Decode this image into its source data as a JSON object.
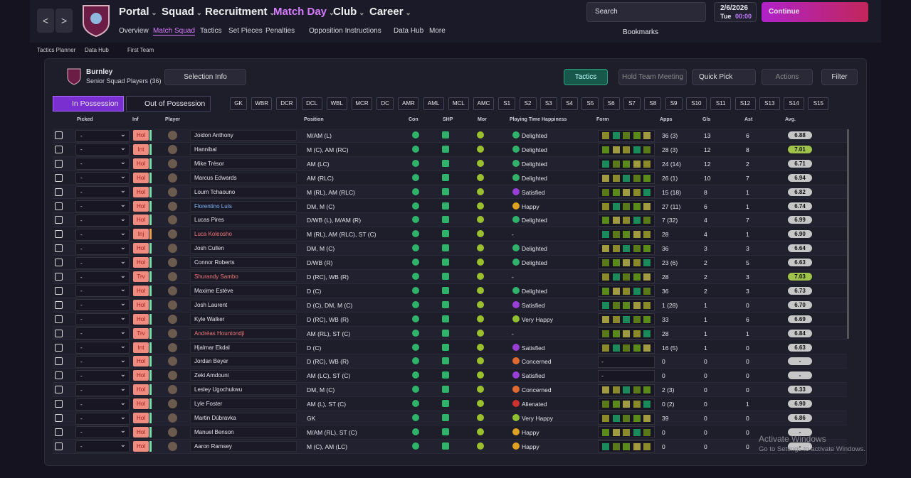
{
  "nav": {
    "back": "<",
    "forward": ">",
    "items": [
      "Portal",
      "Squad",
      "Recruitment",
      "Match Day",
      "Club",
      "Career"
    ],
    "sub": [
      "Overview",
      "Match Squad",
      "Tactics",
      "Set Pieces",
      "Penalties",
      "Opposition Instructions",
      "Data Hub",
      "More"
    ],
    "search": "Search",
    "date": "2/6/2026",
    "day": "Tue",
    "time": "00:00",
    "continue": "Continue",
    "bookmarks": "Bookmarks"
  },
  "breadcrumb": [
    "Tactics Planner",
    "Data Hub",
    "First Team"
  ],
  "panel": {
    "club": "Burnley",
    "squad": "Senior Squad Players (36)",
    "selection": "Selection Info",
    "tactics": "Tactics",
    "meeting": "Hold Team Meeting",
    "quick": "Quick Pick",
    "actions": "Actions",
    "filter": "Filter"
  },
  "tabs": [
    "In Possession",
    "Out of Possession"
  ],
  "positions": [
    "GK",
    "WBR",
    "DCR",
    "DCL",
    "WBL",
    "MCR",
    "DC",
    "AMR",
    "AML",
    "MCL",
    "AMC",
    "S1",
    "S2",
    "S3",
    "S4",
    "S5",
    "S6",
    "S7",
    "S8",
    "S9",
    "S10",
    "S11",
    "S12",
    "S13",
    "S14",
    "S15"
  ],
  "table": {
    "columns": [
      "Picked",
      "Inf",
      "Player",
      "Position",
      "Con",
      "SHP",
      "Mor",
      "Playing Time Happiness",
      "Form",
      "Apps",
      "Gls",
      "Ast",
      "Avg."
    ],
    "rows": [
      {
        "picked": "-",
        "inf": "Hol",
        "player": "Joidon Anthony",
        "position": "M/AM (L)",
        "pth": "Delighted",
        "apps": "36 (3)",
        "gls": "13",
        "ast": "6",
        "avg": "6.88"
      },
      {
        "picked": "-",
        "inf": "Int",
        "player": "Hannibal",
        "position": "M (C), AM (RC)",
        "pth": "Delighted",
        "apps": "28 (3)",
        "gls": "12",
        "ast": "8",
        "avg": "7.01"
      },
      {
        "picked": "-",
        "inf": "Hol",
        "player": "Mike Trésor",
        "position": "AM (LC)",
        "pth": "Delighted",
        "apps": "24 (14)",
        "gls": "12",
        "ast": "2",
        "avg": "6.71"
      },
      {
        "picked": "-",
        "inf": "Hol",
        "player": "Marcus Edwards",
        "position": "AM (RLC)",
        "pth": "Delighted",
        "apps": "26 (1)",
        "gls": "10",
        "ast": "7",
        "avg": "6.94"
      },
      {
        "picked": "-",
        "inf": "Hol",
        "player": "Lourn Tchaouno",
        "position": "M (RL), AM (RLC)",
        "pth": "Satisfied",
        "apps": "15 (18)",
        "gls": "8",
        "ast": "1",
        "avg": "6.82"
      },
      {
        "picked": "-",
        "inf": "Hol",
        "player": "Florentino Luís",
        "position": "DM, M (C)",
        "pth": "Happy",
        "apps": "27 (11)",
        "gls": "6",
        "ast": "1",
        "avg": "6.74"
      },
      {
        "picked": "-",
        "inf": "Hol",
        "player": "Lucas Pires",
        "position": "D/WB (L), M/AM (R)",
        "pth": "Delighted",
        "apps": "7 (32)",
        "gls": "4",
        "ast": "7",
        "avg": "6.99"
      },
      {
        "picked": "-",
        "inf": "Inj",
        "player": "Luca Koleosho",
        "position": "M (RL), AM (RLC), ST (C)",
        "pth": "-",
        "apps": "28",
        "gls": "4",
        "ast": "1",
        "avg": "6.90"
      },
      {
        "picked": "-",
        "inf": "Hol",
        "player": "Josh Cullen",
        "position": "DM, M (C)",
        "pth": "Delighted",
        "apps": "36",
        "gls": "3",
        "ast": "3",
        "avg": "6.64"
      },
      {
        "picked": "-",
        "inf": "Hol",
        "player": "Connor Roberts",
        "position": "D/WB (R)",
        "pth": "Delighted",
        "apps": "23 (6)",
        "gls": "2",
        "ast": "5",
        "avg": "6.63"
      },
      {
        "picked": "-",
        "inf": "Trv",
        "player": "Shurandy Sambo",
        "position": "D (RC), WB (R)",
        "pth": "-",
        "apps": "28",
        "gls": "2",
        "ast": "3",
        "avg": "7.03"
      },
      {
        "picked": "-",
        "inf": "Hol",
        "player": "Maxime Estève",
        "position": "D (C)",
        "pth": "Delighted",
        "apps": "36",
        "gls": "2",
        "ast": "3",
        "avg": "6.73"
      },
      {
        "picked": "-",
        "inf": "Hol",
        "player": "Josh Laurent",
        "position": "D (C), DM, M (C)",
        "pth": "Satisfied",
        "apps": "1 (28)",
        "gls": "1",
        "ast": "0",
        "avg": "6.70"
      },
      {
        "picked": "-",
        "inf": "Hol",
        "player": "Kyle Walker",
        "position": "D (RC), WB (R)",
        "pth": "Very Happy",
        "apps": "33",
        "gls": "1",
        "ast": "6",
        "avg": "6.69"
      },
      {
        "picked": "-",
        "inf": "Trv",
        "player": "Andréas Hountondji",
        "position": "AM (RL), ST (C)",
        "pth": "-",
        "apps": "28",
        "gls": "1",
        "ast": "1",
        "avg": "6.84"
      },
      {
        "picked": "-",
        "inf": "Int",
        "player": "Hjalmar Ekdal",
        "position": "D (C)",
        "pth": "Satisfied",
        "apps": "16 (5)",
        "gls": "1",
        "ast": "0",
        "avg": "6.63"
      },
      {
        "picked": "-",
        "inf": "Hol",
        "player": "Jordan Beyer",
        "position": "D (RC), WB (R)",
        "pth": "Concerned",
        "form": "-",
        "apps": "0",
        "gls": "0",
        "ast": "0",
        "avg": "-"
      },
      {
        "picked": "-",
        "inf": "Hol",
        "player": "Zeki Amdouni",
        "position": "AM (LC), ST (C)",
        "pth": "Satisfied",
        "form": "-",
        "apps": "0",
        "gls": "0",
        "ast": "0",
        "avg": "-"
      },
      {
        "picked": "-",
        "inf": "Hol",
        "player": "Lesley Ugochukwu",
        "position": "DM, M (C)",
        "pth": "Concerned",
        "apps": "2 (3)",
        "gls": "0",
        "ast": "0",
        "avg": "6.33"
      },
      {
        "picked": "-",
        "inf": "Hol",
        "player": "Lyle Foster",
        "position": "AM (L), ST (C)",
        "pth": "Alienated",
        "apps": "0 (2)",
        "gls": "0",
        "ast": "1",
        "avg": "6.90"
      },
      {
        "picked": "-",
        "inf": "Hol",
        "player": "Martin Dúbravka",
        "position": "GK",
        "pth": "Very Happy",
        "apps": "39",
        "gls": "0",
        "ast": "0",
        "avg": "6.86"
      },
      {
        "picked": "-",
        "inf": "Hol",
        "player": "Manuel Benson",
        "position": "M/AM (RL), ST (C)",
        "pth": "Happy",
        "apps": "0",
        "gls": "0",
        "ast": "0",
        "avg": "-"
      },
      {
        "picked": "-",
        "inf": "Hol",
        "player": "Aaron Ramsey",
        "position": "M (C), AM (LC)",
        "pth": "Happy",
        "apps": "0",
        "gls": "0",
        "ast": "0",
        "avg": "-"
      }
    ]
  },
  "watermark": {
    "title": "Activate Windows",
    "text": "Go to Settings to activate Windows."
  }
}
